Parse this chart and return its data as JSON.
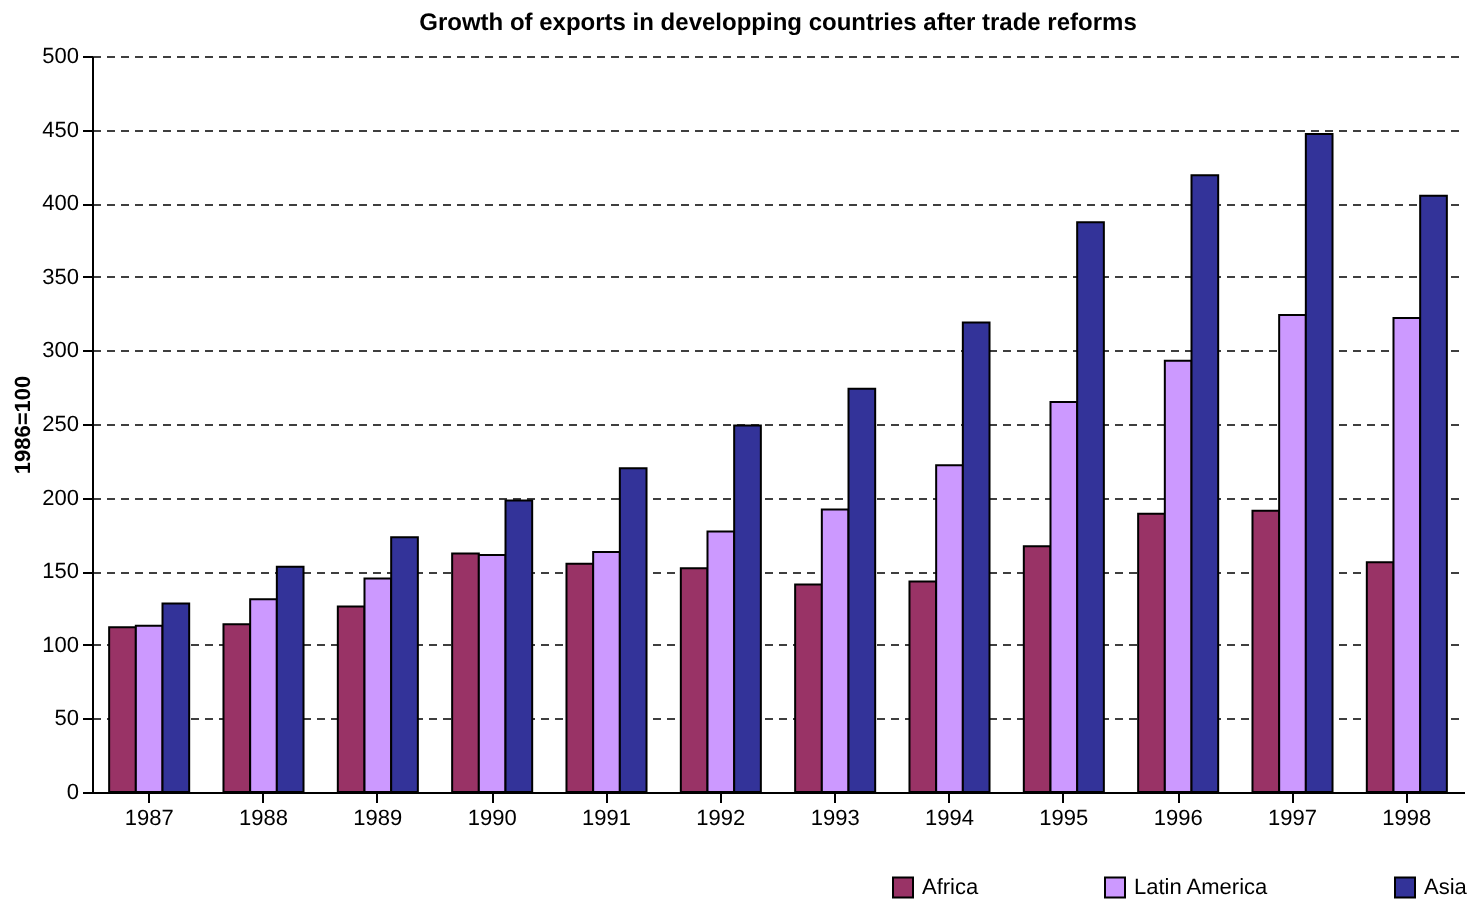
{
  "chart_data": {
    "type": "bar",
    "title": "Growth of exports in developping countries after trade reforms",
    "ylabel": "1986=100",
    "categories": [
      "1987",
      "1988",
      "1989",
      "1990",
      "1991",
      "1992",
      "1993",
      "1994",
      "1995",
      "1996",
      "1997",
      "1998"
    ],
    "series": [
      {
        "name": "Africa",
        "color": "#993366",
        "values": [
          112,
          114,
          126,
          162,
          155,
          152,
          141,
          143,
          167,
          189,
          191,
          156
        ]
      },
      {
        "name": "Latin America",
        "color": "#cc99ff",
        "values": [
          113,
          131,
          145,
          161,
          163,
          177,
          192,
          222,
          265,
          293,
          324,
          322
        ]
      },
      {
        "name": "Asia",
        "color": "#333399",
        "values": [
          128,
          153,
          173,
          198,
          220,
          249,
          274,
          319,
          387,
          419,
          447,
          405
        ]
      }
    ],
    "ylim": [
      0,
      500
    ],
    "yticks": [
      0,
      50,
      100,
      150,
      200,
      250,
      300,
      350,
      400,
      450,
      500
    ],
    "grid": "y",
    "legend": "bottom right"
  }
}
